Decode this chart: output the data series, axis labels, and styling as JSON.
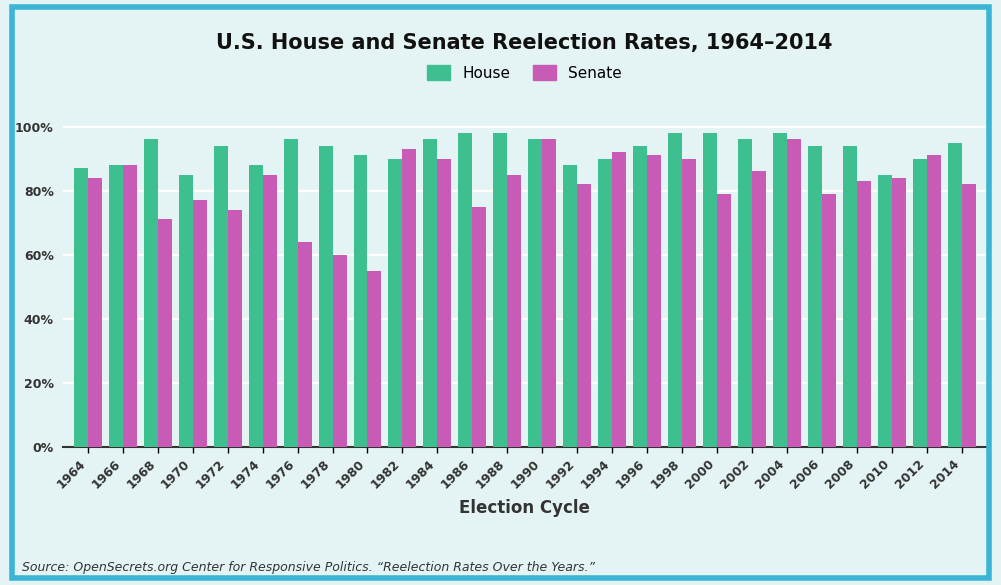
{
  "title": "U.S. House and Senate Reelection Rates, 1964–2014",
  "xlabel": "Election Cycle",
  "ylabel": "",
  "years": [
    1964,
    1966,
    1968,
    1970,
    1972,
    1974,
    1976,
    1978,
    1980,
    1982,
    1984,
    1986,
    1988,
    1990,
    1992,
    1994,
    1996,
    1998,
    2000,
    2002,
    2004,
    2006,
    2008,
    2010,
    2012,
    2014
  ],
  "house": [
    87,
    88,
    96,
    85,
    94,
    88,
    96,
    94,
    91,
    90,
    96,
    98,
    98,
    96,
    88,
    90,
    94,
    98,
    98,
    96,
    98,
    94,
    94,
    85,
    90,
    95
  ],
  "senate": [
    84,
    88,
    71,
    77,
    74,
    85,
    64,
    60,
    55,
    93,
    90,
    75,
    85,
    96,
    82,
    92,
    91,
    90,
    79,
    86,
    96,
    79,
    83,
    84,
    91,
    82
  ],
  "house_color": "#3dbf8f",
  "senate_color": "#c75bb5",
  "background_color": "#e4f4f4",
  "border_color": "#3ab5d5",
  "plot_bg_color": "#e4f4f4",
  "grid_color": "#ffffff",
  "yticks": [
    0,
    20,
    40,
    60,
    80,
    100
  ],
  "ytick_labels": [
    "0%",
    "20%",
    "40%",
    "60%",
    "80%",
    "100%"
  ],
  "source_text": "Source: OpenSecrets.org Center for Responsive Politics. “Reelection Rates Over the Years.”",
  "title_fontsize": 15,
  "axis_label_fontsize": 12,
  "tick_fontsize": 9,
  "legend_fontsize": 11,
  "source_fontsize": 9
}
